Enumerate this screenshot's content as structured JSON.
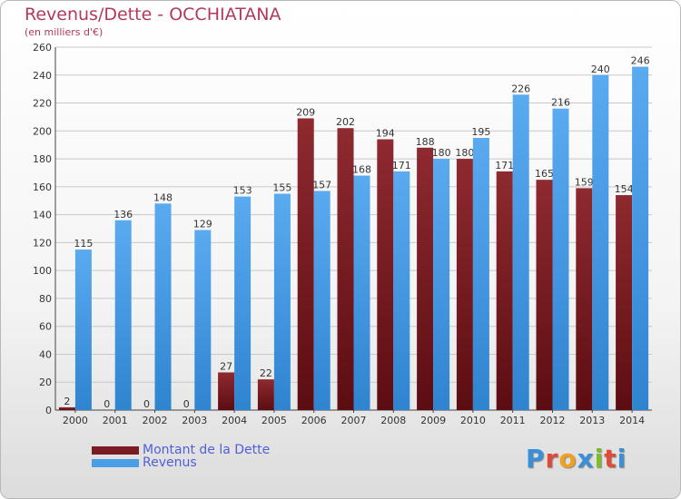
{
  "header": {
    "title": "Revenus/Dette - OCCHIATANA",
    "subtitle": "(en milliers d'€)"
  },
  "legend": {
    "dette_label": "Montant de la Dette",
    "revenus_label": "Revenus"
  },
  "brand": {
    "text": "Proxiti",
    "letter_colors": [
      "#3a8fd6",
      "#e04a3a",
      "#f0a020",
      "#3a8fd6",
      "#7cbd2a",
      "#e04a3a",
      "#3a8fd6"
    ]
  },
  "colors": {
    "dette": "#7b1c24",
    "revenus": "#4a9ee6",
    "grid": "#c8c8c8"
  },
  "chart_data": {
    "type": "bar",
    "title": "Revenus/Dette - OCCHIATANA",
    "subtitle": "(en milliers d'€)",
    "categories": [
      "2000",
      "2001",
      "2002",
      "2003",
      "2004",
      "2005",
      "2006",
      "2007",
      "2008",
      "2009",
      "2010",
      "2011",
      "2012",
      "2013",
      "2014"
    ],
    "series": [
      {
        "name": "Montant de la Dette",
        "values": [
          2,
          0,
          0,
          0,
          27,
          22,
          209,
          202,
          194,
          188,
          180,
          171,
          165,
          159,
          154
        ]
      },
      {
        "name": "Revenus",
        "values": [
          115,
          136,
          148,
          129,
          153,
          155,
          157,
          168,
          171,
          180,
          195,
          226,
          216,
          240,
          246
        ]
      }
    ],
    "ylim": [
      0,
      260
    ],
    "yticks": [
      0,
      20,
      40,
      60,
      80,
      100,
      120,
      140,
      160,
      180,
      200,
      220,
      240,
      260
    ],
    "grid": true,
    "legend_position": "bottom-left"
  }
}
